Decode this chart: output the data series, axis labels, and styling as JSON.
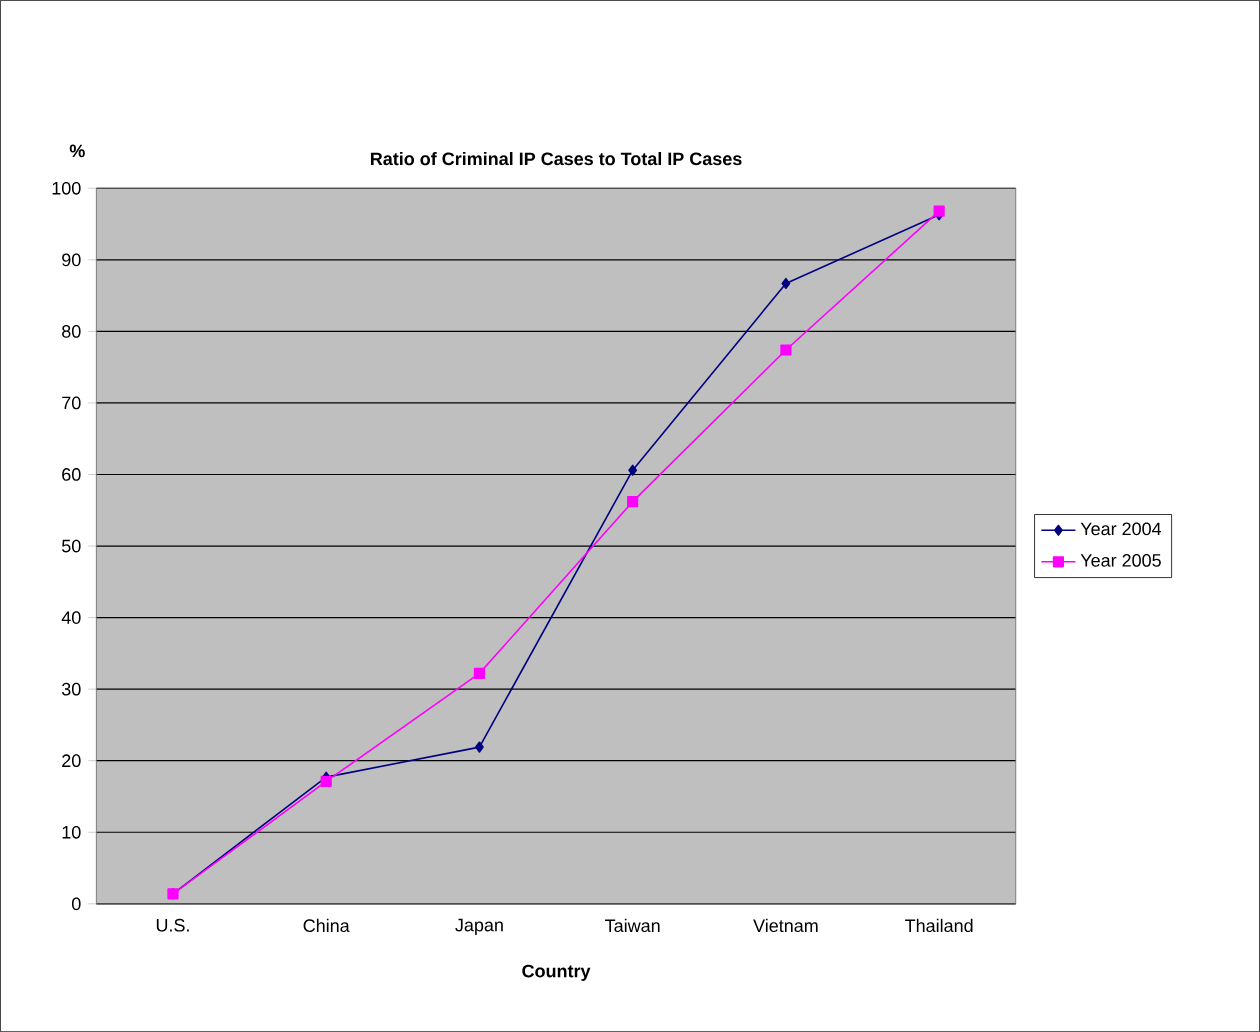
{
  "chart_data": {
    "type": "line",
    "title": "Ratio of Criminal IP Cases to Total IP Cases",
    "xlabel": "Country",
    "ylabel": "%",
    "categories": [
      "U.S.",
      "China",
      "Japan",
      "Taiwan",
      "Vietnam",
      "Thailand"
    ],
    "series": [
      {
        "name": "Year 2004",
        "color": "#000080",
        "marker": "diamond",
        "values": [
          1.4,
          17.7,
          21.9,
          60.6,
          86.7,
          96.3
        ]
      },
      {
        "name": "Year 2005",
        "color": "#ff00ff",
        "marker": "square",
        "values": [
          1.4,
          17.1,
          32.2,
          56.2,
          77.4,
          96.8
        ]
      }
    ],
    "ylim": [
      0,
      100
    ],
    "yticks": [
      0,
      10,
      20,
      30,
      40,
      50,
      60,
      70,
      80,
      90,
      100
    ],
    "grid": "y",
    "legend": "right"
  }
}
